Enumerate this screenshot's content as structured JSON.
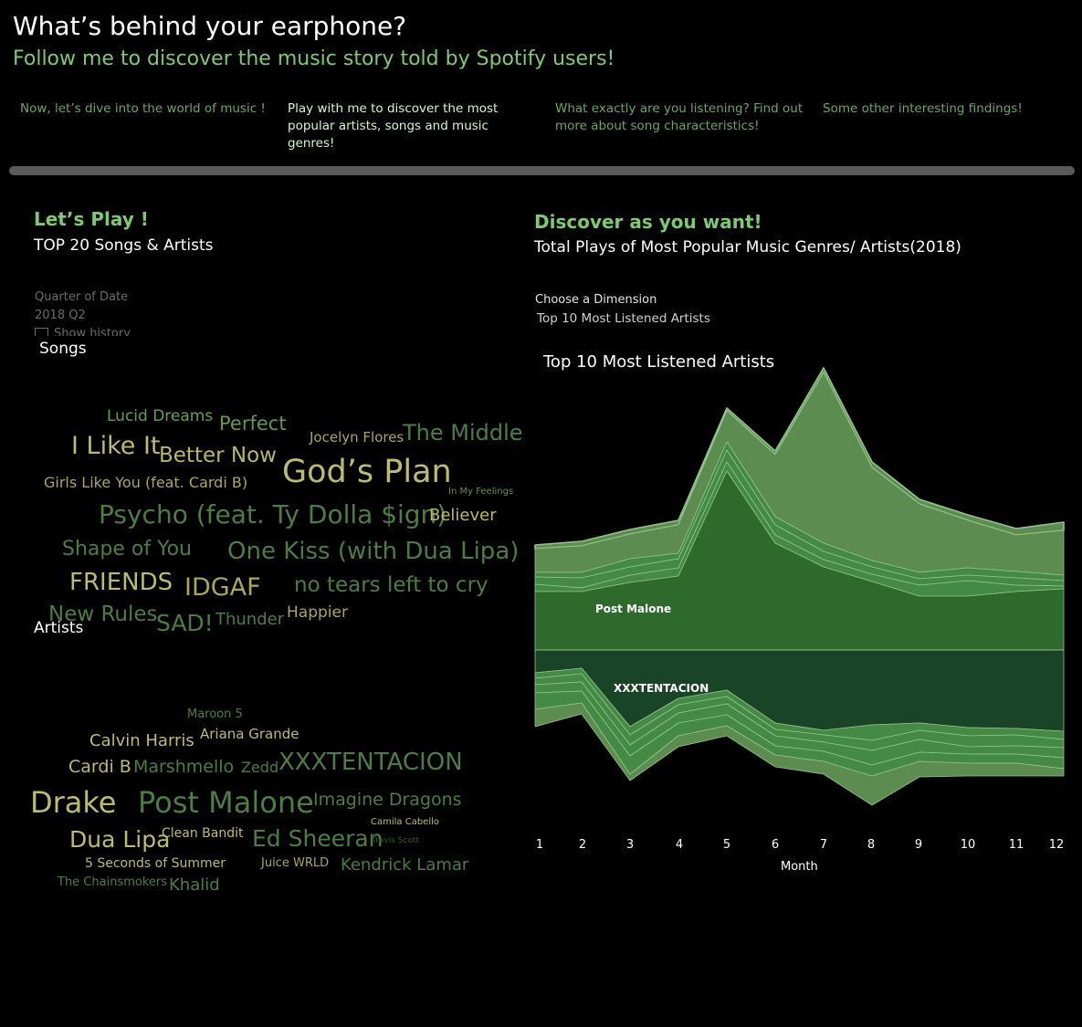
{
  "header": {
    "title": "What’s behind your earphone?",
    "subtitle": "Follow me to discover the music story told by Spotify users!"
  },
  "nav": [
    {
      "label": "Now, let’s dive into the world of music !"
    },
    {
      "label": "Play with me to discover the most popular artists, songs and music genres!"
    },
    {
      "label": "What exactly are you listening? Find out more about song characteristics!"
    },
    {
      "label": "Some other interesting findings!"
    }
  ],
  "left": {
    "title": "Let’s Play !",
    "subtitle": "TOP 20 Songs & Artists",
    "filter": {
      "label": "Quarter of Date",
      "value": "2018 Q2",
      "checkbox_label": "Show history"
    },
    "songs_label": "Songs",
    "artists_label": "Artists"
  },
  "songs": [
    "Lucid Dreams",
    "Perfect",
    "Jocelyn Flores",
    "The Middle",
    "I Like It",
    "Better Now",
    "God’s Plan",
    "Girls Like You (feat. Cardi B)",
    "In My Feelings",
    "Psycho (feat. Ty Dolla $ign)",
    "Believer",
    "Shape of You",
    "One Kiss (with Dua Lipa)",
    "FRIENDS",
    "IDGAF",
    "no tears left to cry",
    "New Rules",
    "SAD!",
    "Thunder",
    "Happier"
  ],
  "artists": [
    "Maroon 5",
    "Calvin Harris",
    "Ariana Grande",
    "Cardi B",
    "Marshmello",
    "Zedd",
    "XXXTENTACION",
    "Drake",
    "Post Malone",
    "Imagine Dragons",
    "Dua Lipa",
    "Clean Bandit",
    "Ed Sheeran",
    "Camila Cabello",
    "Travis Scott",
    "5 Seconds of Summer",
    "Juice WRLD",
    "Kendrick Lamar",
    "The Chainsmokers",
    "Khalid"
  ],
  "right": {
    "title": "Discover as you want!",
    "subtitle": "Total Plays of Most Popular Music Genres/ Artists(2018)",
    "dimension": {
      "label": "Choose a Dimension",
      "value": "Top 10 Most Listened Artists"
    }
  },
  "chart_data": {
    "type": "area",
    "title": "Top 10 Most Listened Artists",
    "xlabel": "Month",
    "x": [
      "1",
      "2",
      "3",
      "4",
      "5",
      "6",
      "7",
      "8",
      "9",
      "10",
      "11",
      "12"
    ],
    "annotations": [
      "Post Malone",
      "XXXTENTACION"
    ],
    "colors": {
      "background": "#000000",
      "post_malone": "#2e6a2c",
      "xxxtentacion": "#1a4426",
      "mid_band": "#448a44",
      "outer_band": "#5c8c50",
      "band_line": "#92c48a"
    }
  }
}
